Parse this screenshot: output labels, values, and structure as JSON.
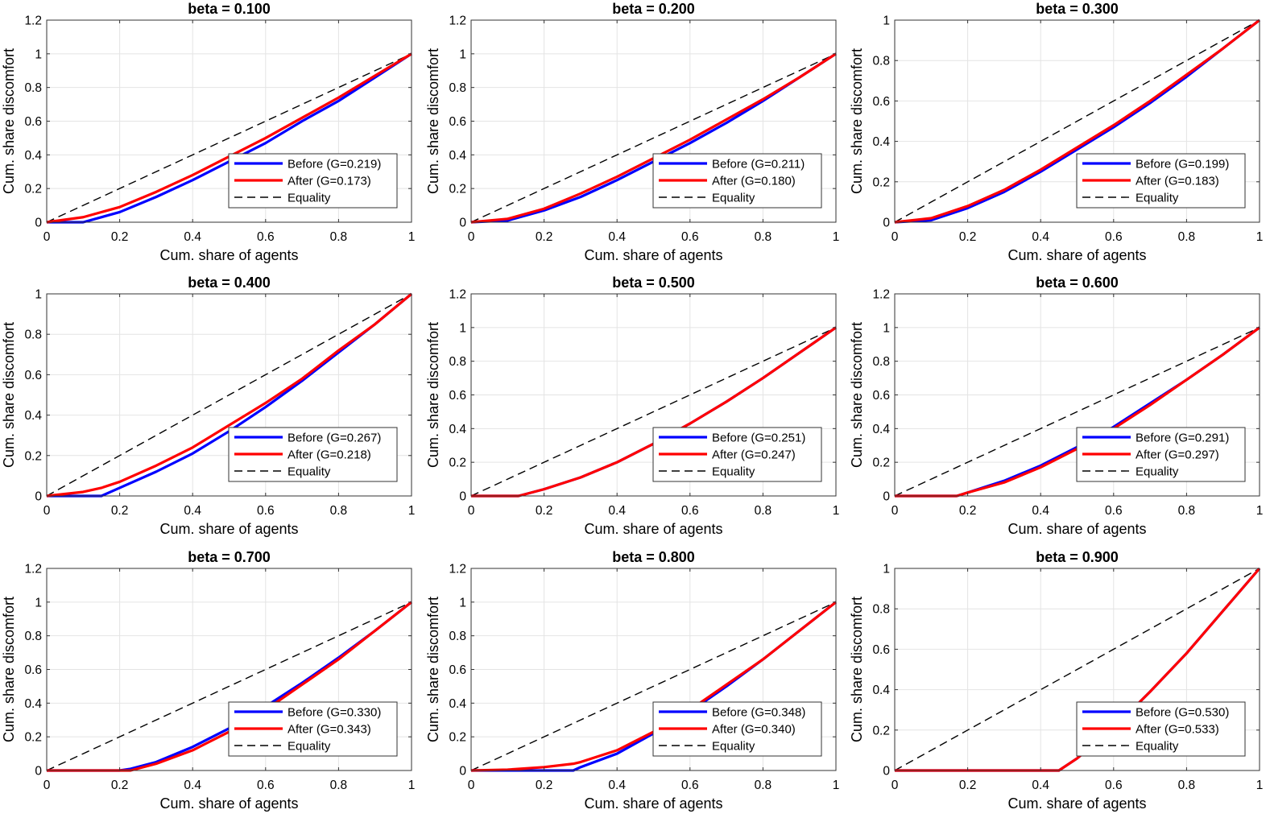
{
  "legend_labels": {
    "before": "Before (G={g})",
    "after": "After (G={g})",
    "equality": "Equality"
  },
  "colors": {
    "before": "#0000ff",
    "after": "#ff0000",
    "equality": "#000000",
    "grid": "#e4e4e4",
    "axes": "#333333"
  },
  "chart_data": [
    {
      "type": "line",
      "title": "beta = 0.100",
      "xlabel": "Cum. share of agents",
      "ylabel": "Cum. share discomfort",
      "xlim": [
        0,
        1
      ],
      "ylim": [
        0,
        1.2
      ],
      "grid": true,
      "legend_position": "bottom-right",
      "x": [
        0,
        0.1,
        0.2,
        0.3,
        0.4,
        0.5,
        0.6,
        0.7,
        0.8,
        0.9,
        1
      ],
      "series": [
        {
          "key": "before",
          "gini": "0.219",
          "values": [
            0,
            0,
            0.06,
            0.15,
            0.25,
            0.36,
            0.47,
            0.6,
            0.72,
            0.86,
            1
          ]
        },
        {
          "key": "after",
          "gini": "0.173",
          "values": [
            0,
            0.03,
            0.09,
            0.18,
            0.28,
            0.39,
            0.5,
            0.62,
            0.74,
            0.87,
            1
          ]
        },
        {
          "key": "equality",
          "values": [
            0,
            0.1,
            0.2,
            0.3,
            0.4,
            0.5,
            0.6,
            0.7,
            0.8,
            0.9,
            1
          ]
        }
      ]
    },
    {
      "type": "line",
      "title": "beta = 0.200",
      "xlabel": "Cum. share of agents",
      "ylabel": "Cum. share discomfort",
      "xlim": [
        0,
        1
      ],
      "ylim": [
        0,
        1.2
      ],
      "grid": true,
      "legend_position": "bottom-right",
      "x": [
        0,
        0.1,
        0.2,
        0.3,
        0.4,
        0.5,
        0.6,
        0.7,
        0.8,
        0.9,
        1
      ],
      "series": [
        {
          "key": "before",
          "gini": "0.211",
          "values": [
            0,
            0.01,
            0.07,
            0.15,
            0.25,
            0.36,
            0.47,
            0.59,
            0.72,
            0.86,
            1
          ]
        },
        {
          "key": "after",
          "gini": "0.180",
          "values": [
            0,
            0.02,
            0.08,
            0.17,
            0.27,
            0.38,
            0.49,
            0.61,
            0.73,
            0.86,
            1
          ]
        },
        {
          "key": "equality",
          "values": [
            0,
            0.1,
            0.2,
            0.3,
            0.4,
            0.5,
            0.6,
            0.7,
            0.8,
            0.9,
            1
          ]
        }
      ]
    },
    {
      "type": "line",
      "title": "beta = 0.300",
      "xlabel": "Cum. share of agents",
      "ylabel": "Cum. share discomfort",
      "xlim": [
        0,
        1
      ],
      "ylim": [
        0,
        1
      ],
      "grid": true,
      "legend_position": "bottom-right",
      "x": [
        0,
        0.1,
        0.2,
        0.3,
        0.4,
        0.5,
        0.6,
        0.7,
        0.8,
        0.9,
        1
      ],
      "series": [
        {
          "key": "before",
          "gini": "0.199",
          "values": [
            0,
            0.01,
            0.07,
            0.15,
            0.25,
            0.36,
            0.47,
            0.59,
            0.72,
            0.86,
            1
          ]
        },
        {
          "key": "after",
          "gini": "0.183",
          "values": [
            0,
            0.02,
            0.08,
            0.16,
            0.26,
            0.37,
            0.48,
            0.6,
            0.73,
            0.86,
            1
          ]
        },
        {
          "key": "equality",
          "values": [
            0,
            0.1,
            0.2,
            0.3,
            0.4,
            0.5,
            0.6,
            0.7,
            0.8,
            0.9,
            1
          ]
        }
      ]
    },
    {
      "type": "line",
      "title": "beta = 0.400",
      "xlabel": "Cum. share of agents",
      "ylabel": "Cum. share discomfort",
      "xlim": [
        0,
        1
      ],
      "ylim": [
        0,
        1
      ],
      "grid": true,
      "legend_position": "bottom-right",
      "x": [
        0,
        0.1,
        0.15,
        0.2,
        0.3,
        0.4,
        0.5,
        0.6,
        0.7,
        0.8,
        0.9,
        1
      ],
      "series": [
        {
          "key": "before",
          "gini": "0.267",
          "values": [
            0,
            0,
            0,
            0.04,
            0.12,
            0.21,
            0.32,
            0.44,
            0.57,
            0.71,
            0.85,
            1
          ]
        },
        {
          "key": "after",
          "gini": "0.218",
          "values": [
            0,
            0.02,
            0.04,
            0.07,
            0.15,
            0.24,
            0.35,
            0.46,
            0.58,
            0.72,
            0.85,
            1
          ]
        },
        {
          "key": "equality",
          "values": [
            0,
            0.1,
            0.15,
            0.2,
            0.3,
            0.4,
            0.5,
            0.6,
            0.7,
            0.8,
            0.9,
            1
          ]
        }
      ]
    },
    {
      "type": "line",
      "title": "beta = 0.500",
      "xlabel": "Cum. share of agents",
      "ylabel": "Cum. share discomfort",
      "xlim": [
        0,
        1
      ],
      "ylim": [
        0,
        1.2
      ],
      "grid": true,
      "legend_position": "bottom-right",
      "x": [
        0,
        0.1,
        0.13,
        0.2,
        0.3,
        0.4,
        0.5,
        0.6,
        0.7,
        0.8,
        0.9,
        1
      ],
      "series": [
        {
          "key": "before",
          "gini": "0.251",
          "values": [
            0,
            0,
            0,
            0.04,
            0.11,
            0.2,
            0.31,
            0.43,
            0.56,
            0.7,
            0.85,
            1
          ]
        },
        {
          "key": "after",
          "gini": "0.247",
          "values": [
            0,
            0,
            0,
            0.04,
            0.11,
            0.2,
            0.31,
            0.43,
            0.56,
            0.7,
            0.85,
            1
          ]
        },
        {
          "key": "equality",
          "values": [
            0,
            0.1,
            0.13,
            0.2,
            0.3,
            0.4,
            0.5,
            0.6,
            0.7,
            0.8,
            0.9,
            1
          ]
        }
      ]
    },
    {
      "type": "line",
      "title": "beta = 0.600",
      "xlabel": "Cum. share of agents",
      "ylabel": "Cum. share discomfort",
      "xlim": [
        0,
        1
      ],
      "ylim": [
        0,
        1.2
      ],
      "grid": true,
      "legend_position": "bottom-right",
      "x": [
        0,
        0.1,
        0.17,
        0.2,
        0.3,
        0.4,
        0.5,
        0.6,
        0.7,
        0.8,
        0.9,
        1
      ],
      "series": [
        {
          "key": "before",
          "gini": "0.291",
          "values": [
            0,
            0,
            0,
            0.02,
            0.09,
            0.18,
            0.29,
            0.41,
            0.55,
            0.69,
            0.84,
            1
          ]
        },
        {
          "key": "after",
          "gini": "0.297",
          "values": [
            0,
            0,
            0,
            0.02,
            0.08,
            0.17,
            0.28,
            0.4,
            0.54,
            0.69,
            0.84,
            1
          ]
        },
        {
          "key": "equality",
          "values": [
            0,
            0.1,
            0.17,
            0.2,
            0.3,
            0.4,
            0.5,
            0.6,
            0.7,
            0.8,
            0.9,
            1
          ]
        }
      ]
    },
    {
      "type": "line",
      "title": "beta = 0.700",
      "xlabel": "Cum. share of agents",
      "ylabel": "Cum. share discomfort",
      "xlim": [
        0,
        1
      ],
      "ylim": [
        0,
        1.2
      ],
      "grid": true,
      "legend_position": "bottom-right",
      "x": [
        0,
        0.1,
        0.2,
        0.23,
        0.3,
        0.4,
        0.5,
        0.6,
        0.7,
        0.8,
        0.9,
        1
      ],
      "series": [
        {
          "key": "before",
          "gini": "0.330",
          "values": [
            0,
            0,
            0,
            0.01,
            0.05,
            0.14,
            0.25,
            0.38,
            0.52,
            0.67,
            0.83,
            1
          ]
        },
        {
          "key": "after",
          "gini": "0.343",
          "values": [
            0,
            0,
            0,
            0,
            0.04,
            0.12,
            0.23,
            0.36,
            0.51,
            0.66,
            0.83,
            1
          ]
        },
        {
          "key": "equality",
          "values": [
            0,
            0.1,
            0.2,
            0.23,
            0.3,
            0.4,
            0.5,
            0.6,
            0.7,
            0.8,
            0.9,
            1
          ]
        }
      ]
    },
    {
      "type": "line",
      "title": "beta = 0.800",
      "xlabel": "Cum. share of agents",
      "ylabel": "Cum. share discomfort",
      "xlim": [
        0,
        1
      ],
      "ylim": [
        0,
        1.2
      ],
      "grid": true,
      "legend_position": "bottom-right",
      "x": [
        0,
        0.1,
        0.2,
        0.28,
        0.3,
        0.4,
        0.5,
        0.6,
        0.7,
        0.8,
        0.9,
        1
      ],
      "series": [
        {
          "key": "before",
          "gini": "0.348",
          "values": [
            0,
            0,
            0,
            0,
            0.02,
            0.1,
            0.22,
            0.35,
            0.5,
            0.66,
            0.83,
            1
          ]
        },
        {
          "key": "after",
          "gini": "0.340",
          "values": [
            0,
            0.005,
            0.02,
            0.04,
            0.05,
            0.12,
            0.23,
            0.36,
            0.51,
            0.66,
            0.83,
            1
          ]
        },
        {
          "key": "equality",
          "values": [
            0,
            0.1,
            0.2,
            0.28,
            0.3,
            0.4,
            0.5,
            0.6,
            0.7,
            0.8,
            0.9,
            1
          ]
        }
      ]
    },
    {
      "type": "line",
      "title": "beta = 0.900",
      "xlabel": "Cum. share of agents",
      "ylabel": "Cum. share discomfort",
      "xlim": [
        0,
        1
      ],
      "ylim": [
        0,
        1
      ],
      "grid": true,
      "legend_position": "bottom-right",
      "x": [
        0,
        0.2,
        0.4,
        0.45,
        0.5,
        0.6,
        0.7,
        0.8,
        0.9,
        1
      ],
      "series": [
        {
          "key": "before",
          "gini": "0.530",
          "values": [
            0,
            0,
            0,
            0,
            0.06,
            0.21,
            0.39,
            0.58,
            0.79,
            1
          ]
        },
        {
          "key": "after",
          "gini": "0.533",
          "values": [
            0,
            0,
            0,
            0,
            0.06,
            0.21,
            0.39,
            0.58,
            0.79,
            1
          ]
        },
        {
          "key": "equality",
          "values": [
            0,
            0.2,
            0.4,
            0.45,
            0.5,
            0.6,
            0.7,
            0.8,
            0.9,
            1
          ]
        }
      ]
    }
  ]
}
